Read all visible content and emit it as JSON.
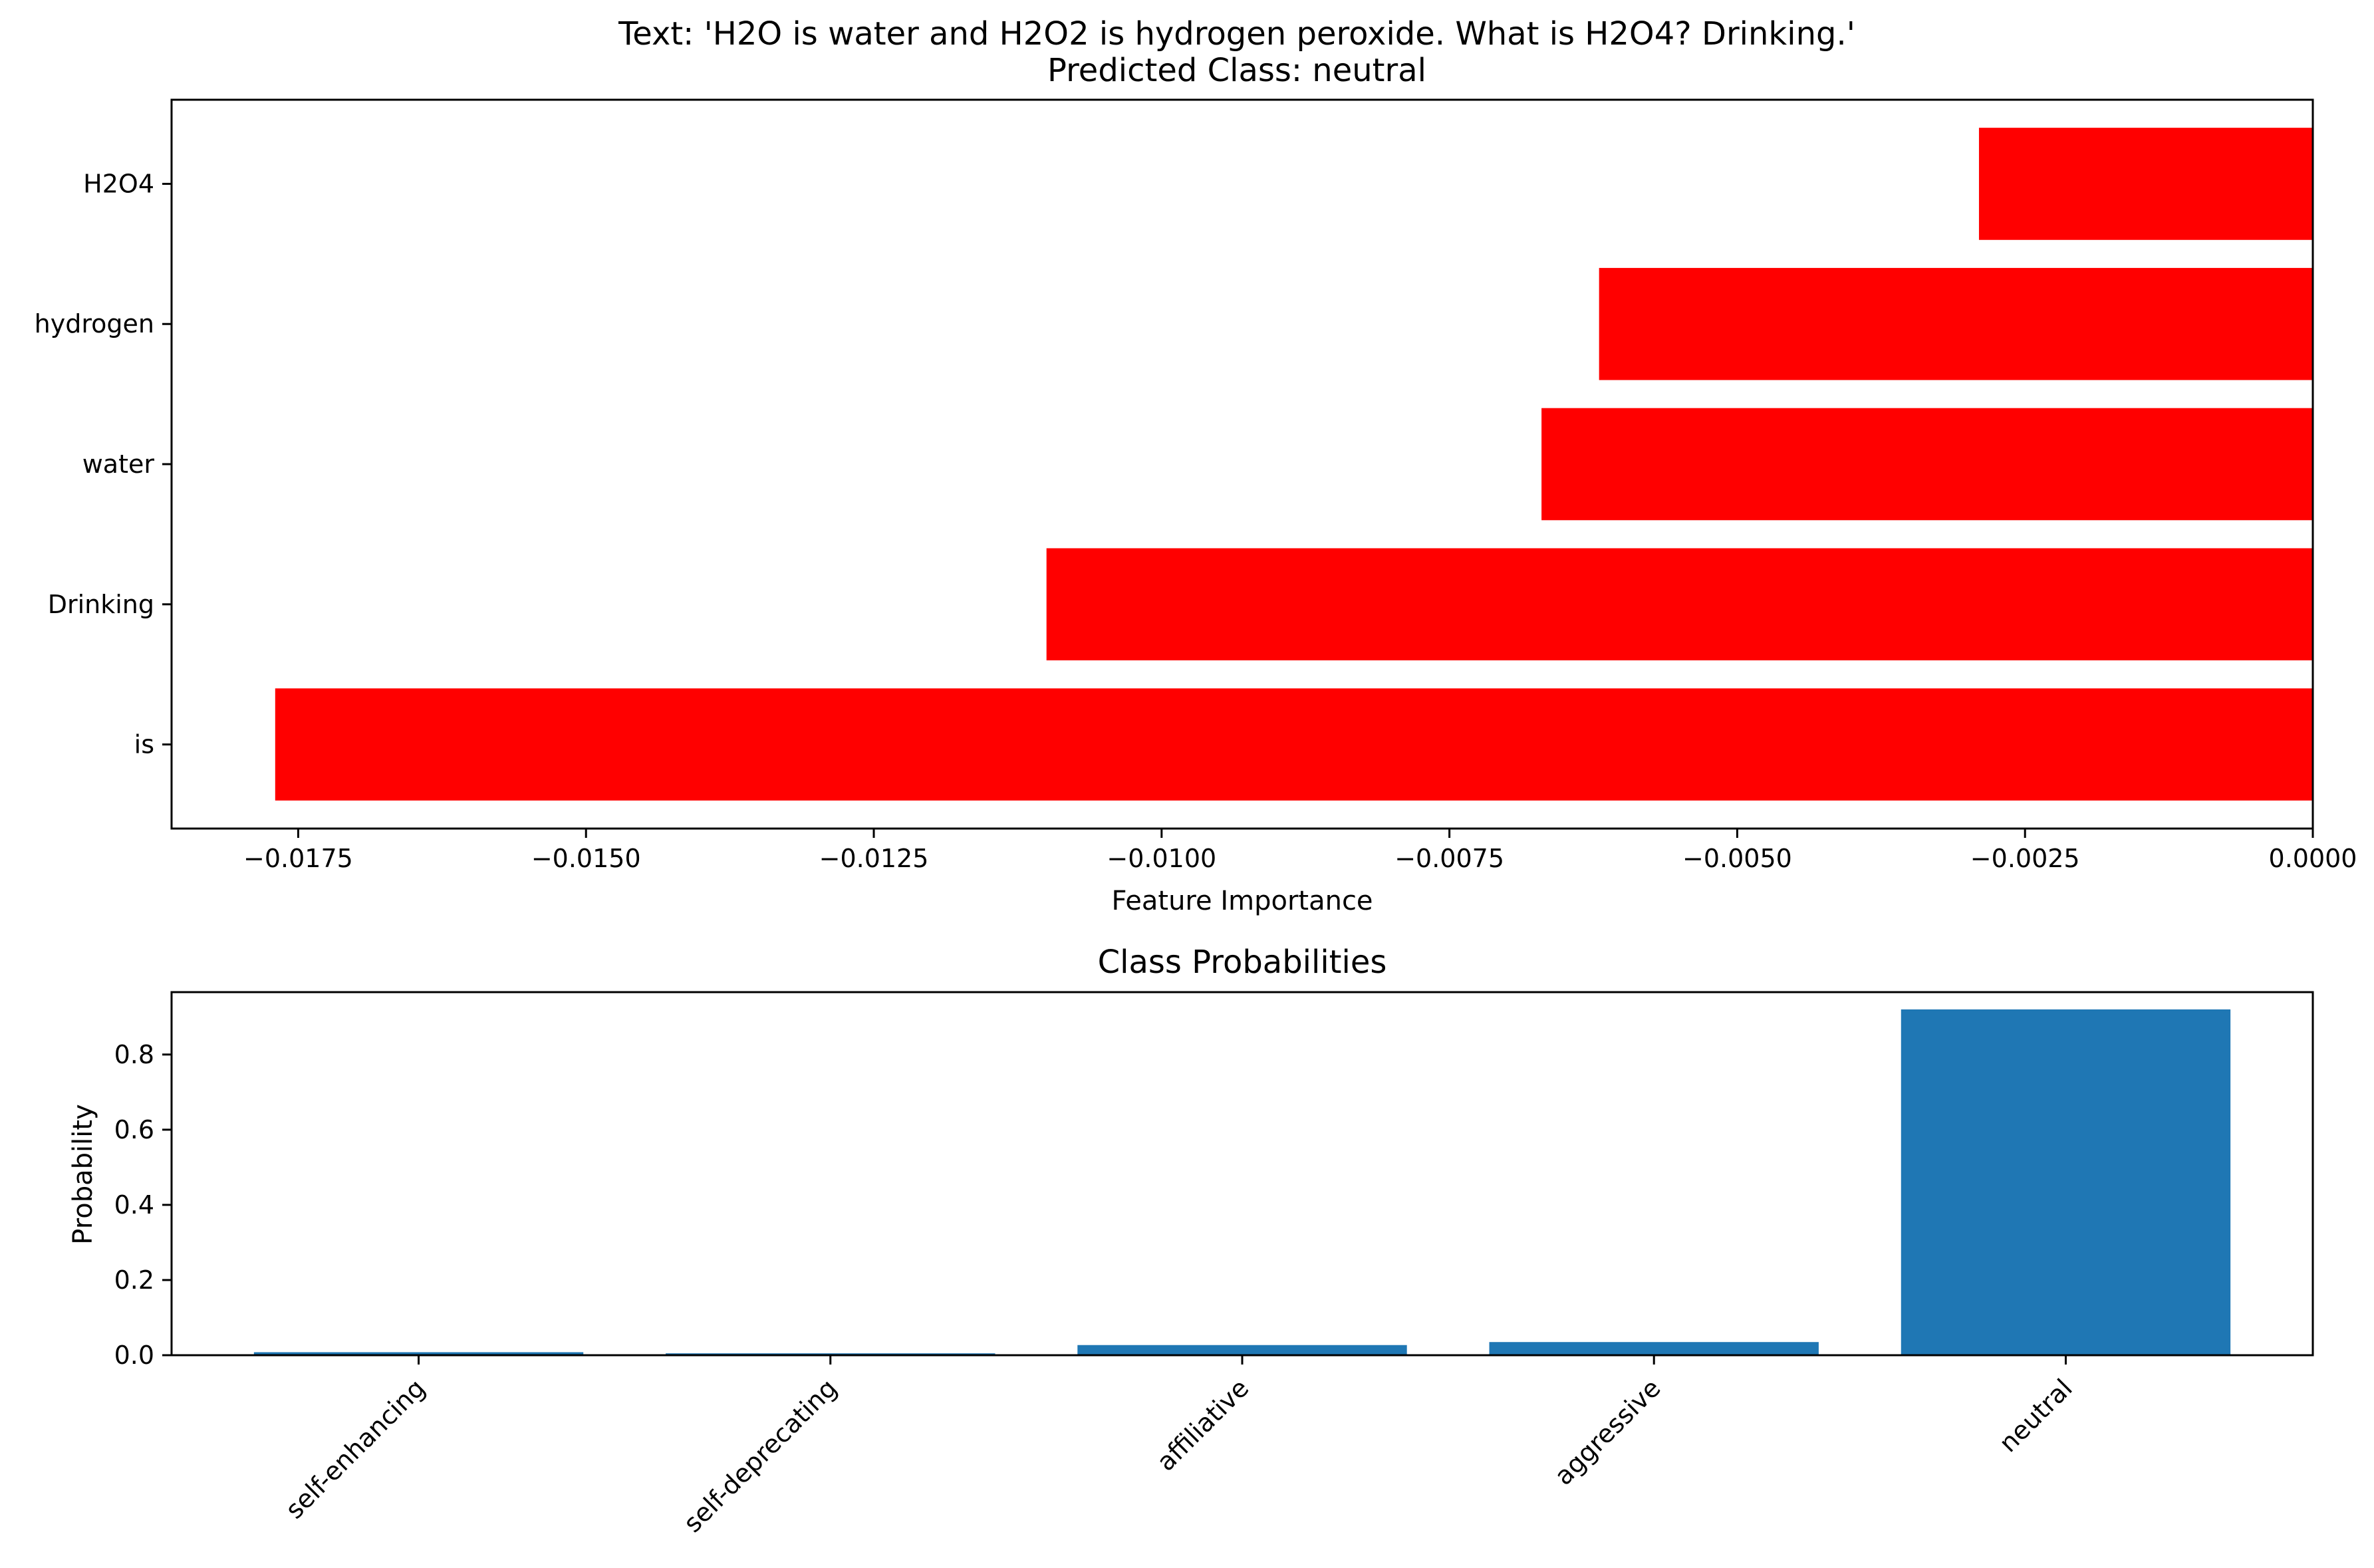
{
  "chart_data": [
    {
      "type": "bar",
      "orientation": "horizontal",
      "title": "Text: 'H2O is water and H2O2 is hydrogen peroxide. What is H2O4? Drinking.'",
      "subtitle": "Predicted Class: neutral",
      "xlabel": "Feature Importance",
      "ylabel": "",
      "categories": [
        "is",
        "Drinking",
        "water",
        "hydrogen",
        "H2O4"
      ],
      "values": [
        -0.0177,
        -0.011,
        -0.0067,
        -0.0062,
        -0.0029
      ],
      "xlim": [
        -0.0186,
        0.0
      ],
      "xticks": [
        "−0.0175",
        "−0.0150",
        "−0.0125",
        "−0.0100",
        "−0.0075",
        "−0.0050",
        "−0.0025",
        "0.0000"
      ],
      "xtick_values": [
        -0.0175,
        -0.015,
        -0.0125,
        -0.01,
        -0.0075,
        -0.005,
        -0.0025,
        0.0
      ],
      "bar_color": "#ff0000",
      "grid": false
    },
    {
      "type": "bar",
      "orientation": "vertical",
      "title": "Class Probabilities",
      "xlabel": "",
      "ylabel": "Probability",
      "categories": [
        "self-enhancing",
        "self-deprecating",
        "affiliative",
        "aggressive",
        "neutral"
      ],
      "values": [
        0.008,
        0.005,
        0.027,
        0.035,
        0.92
      ],
      "ylim": [
        0.0,
        0.966
      ],
      "yticks": [
        "0.0",
        "0.2",
        "0.4",
        "0.6",
        "0.8"
      ],
      "ytick_values": [
        0.0,
        0.2,
        0.4,
        0.6,
        0.8
      ],
      "bar_color": "#1f77b4",
      "grid": false
    }
  ]
}
